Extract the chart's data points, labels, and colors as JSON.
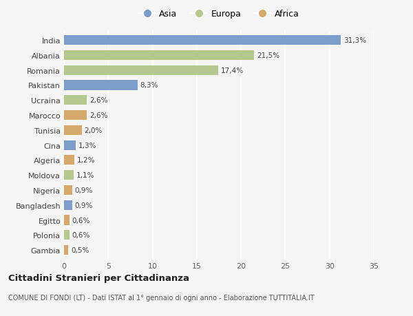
{
  "categories": [
    "India",
    "Albania",
    "Romania",
    "Pakistan",
    "Ucraina",
    "Marocco",
    "Tunisia",
    "Cina",
    "Algeria",
    "Moldova",
    "Nigeria",
    "Bangladesh",
    "Egitto",
    "Polonia",
    "Gambia"
  ],
  "values": [
    31.3,
    21.5,
    17.4,
    8.3,
    2.6,
    2.6,
    2.0,
    1.3,
    1.2,
    1.1,
    0.9,
    0.9,
    0.6,
    0.6,
    0.5
  ],
  "labels": [
    "31,3%",
    "21,5%",
    "17,4%",
    "8,3%",
    "2,6%",
    "2,6%",
    "2,0%",
    "1,3%",
    "1,2%",
    "1,1%",
    "0,9%",
    "0,9%",
    "0,6%",
    "0,6%",
    "0,5%"
  ],
  "continents": [
    "Asia",
    "Europa",
    "Europa",
    "Asia",
    "Europa",
    "Africa",
    "Africa",
    "Asia",
    "Africa",
    "Europa",
    "Africa",
    "Asia",
    "Africa",
    "Europa",
    "Africa"
  ],
  "colors": {
    "Asia": "#7b9dc9",
    "Europa": "#b5c98e",
    "Africa": "#d4a96a"
  },
  "legend": [
    "Asia",
    "Europa",
    "Africa"
  ],
  "legend_colors": [
    "#7b9dc9",
    "#b5c98e",
    "#d4a96a"
  ],
  "xlim": [
    0,
    35
  ],
  "xticks": [
    0,
    5,
    10,
    15,
    20,
    25,
    30,
    35
  ],
  "title": "Cittadini Stranieri per Cittadinanza",
  "subtitle": "COMUNE DI FONDI (LT) - Dati ISTAT al 1° gennaio di ogni anno - Elaborazione TUTTITALIA.IT",
  "background_color": "#f5f5f5",
  "grid_color": "#ffffff",
  "bar_height": 0.65
}
